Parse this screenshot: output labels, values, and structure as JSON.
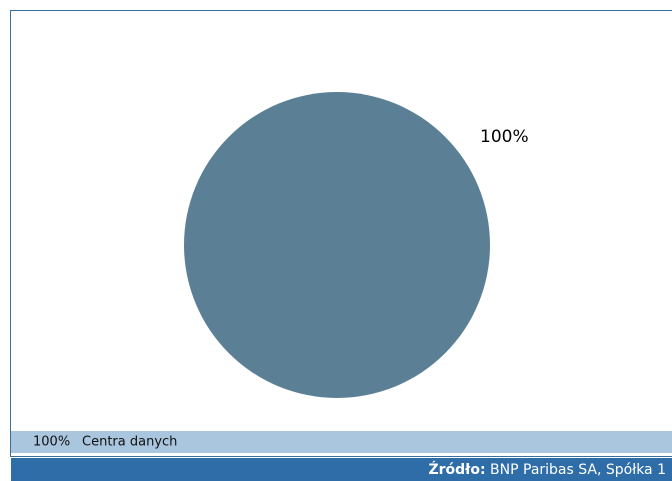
{
  "chart_data": {
    "type": "pie",
    "categories": [
      "Centra danych"
    ],
    "values": [
      100
    ],
    "value_labels": [
      "100%"
    ],
    "colors": [
      "#5b8096"
    ],
    "source_label": "Źródło:",
    "source": "BNP Paribas SA, Spółka 1"
  }
}
